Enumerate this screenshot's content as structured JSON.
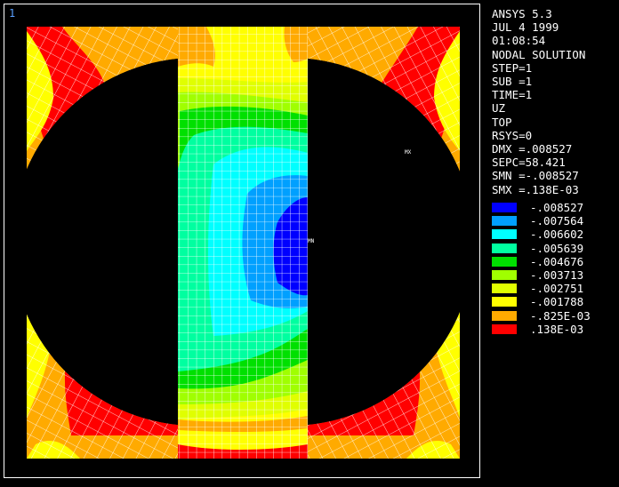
{
  "window_number": "1",
  "info_lines": [
    "ANSYS 5.3",
    "JUL  4 1999",
    "01:08:54",
    "NODAL SOLUTION",
    "STEP=1",
    "SUB =1",
    "TIME=1",
    "UZ",
    "TOP",
    "RSYS=0",
    "DMX =.008527",
    "SEPC=58.421",
    "SMN =-.008527",
    "SMX =.138E-03"
  ],
  "legend": [
    {
      "color": "#0000ff",
      "label": "-.008527"
    },
    {
      "color": "#00a0ff",
      "label": "-.007564"
    },
    {
      "color": "#00ffff",
      "label": "-.006602"
    },
    {
      "color": "#00ffa0",
      "label": "-.005639"
    },
    {
      "color": "#00e000",
      "label": "-.004676"
    },
    {
      "color": "#a0ff00",
      "label": "-.003713"
    },
    {
      "color": "#e0ff00",
      "label": "-.002751"
    },
    {
      "color": "#ffff00",
      "label": "-.001788"
    },
    {
      "color": "#ffaa00",
      "label": "-.825E-03"
    },
    {
      "color": "#ff0000",
      "label": ".138E-03"
    }
  ],
  "markers": {
    "min": "MN",
    "max": "MX"
  }
}
